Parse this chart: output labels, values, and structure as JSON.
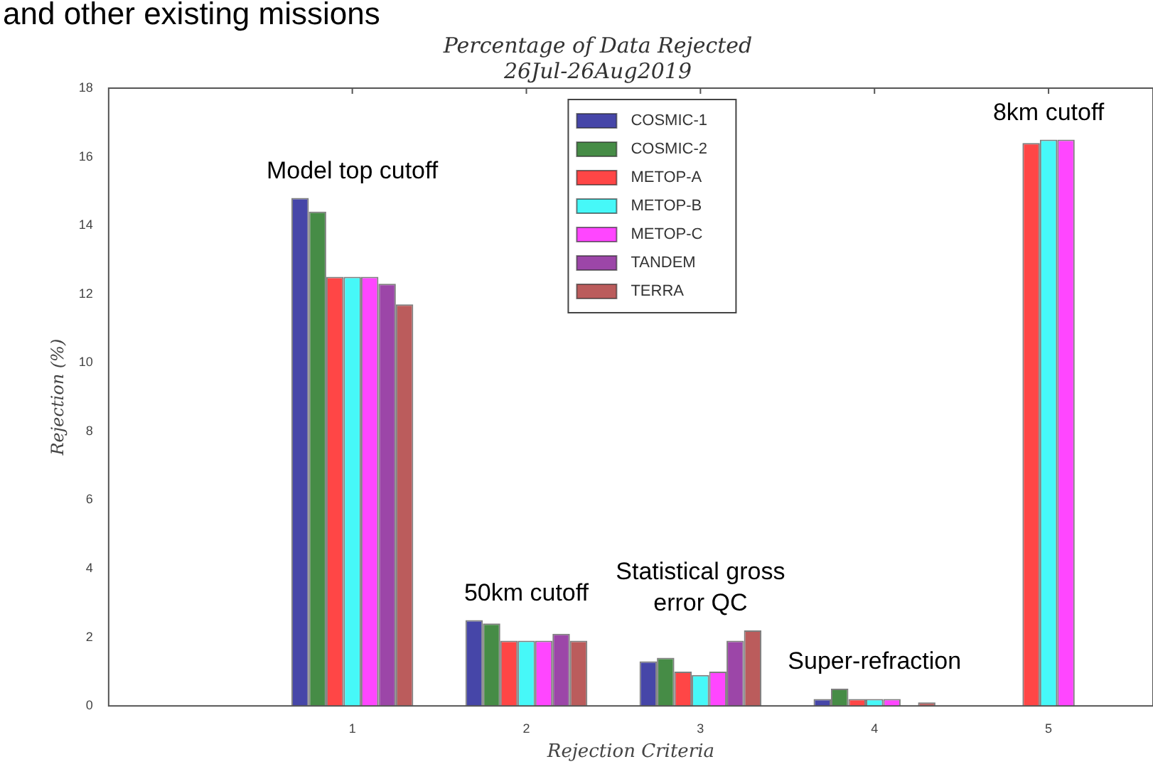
{
  "chart_data": {
    "type": "bar",
    "title": "Percentage of Data Rejected",
    "subtitle": "26Jul-26Aug2019",
    "xlabel": "Rejection Criteria",
    "ylabel": "Rejection (%)",
    "x": [
      1,
      2,
      3,
      4,
      5
    ],
    "xlim": [
      -0.4,
      5.6
    ],
    "xticks": [
      1,
      2,
      3,
      4,
      5
    ],
    "ylim": [
      0,
      18
    ],
    "yticks": [
      0,
      2,
      4,
      6,
      8,
      10,
      12,
      14,
      16,
      18
    ],
    "series": [
      {
        "name": "COSMIC-1",
        "color": "#4646a8",
        "values": [
          14.8,
          2.5,
          1.3,
          0.2,
          null
        ]
      },
      {
        "name": "COSMIC-2",
        "color": "#468c46",
        "values": [
          14.4,
          2.4,
          1.4,
          0.5,
          null
        ]
      },
      {
        "name": "METOP-A",
        "color": "#ff4646",
        "values": [
          12.5,
          1.9,
          1.0,
          0.2,
          16.4
        ]
      },
      {
        "name": "METOP-B",
        "color": "#46f8f8",
        "values": [
          12.5,
          1.9,
          0.9,
          0.2,
          16.5
        ]
      },
      {
        "name": "METOP-C",
        "color": "#ff46ff",
        "values": [
          12.5,
          1.9,
          1.0,
          0.2,
          16.5
        ]
      },
      {
        "name": "TANDEM",
        "color": "#9c46a8",
        "values": [
          12.3,
          2.1,
          1.9,
          0,
          null
        ]
      },
      {
        "name": "TERRA",
        "color": "#bb5c5c",
        "values": [
          11.7,
          1.9,
          2.2,
          0.1,
          null
        ]
      }
    ],
    "legend": "top",
    "grid": false,
    "annotations": [
      "and other existing missions",
      "Model top cutoff",
      "50km cutoff",
      "Statistical gross error QC",
      "Super-refraction",
      "8km cutoff"
    ]
  }
}
